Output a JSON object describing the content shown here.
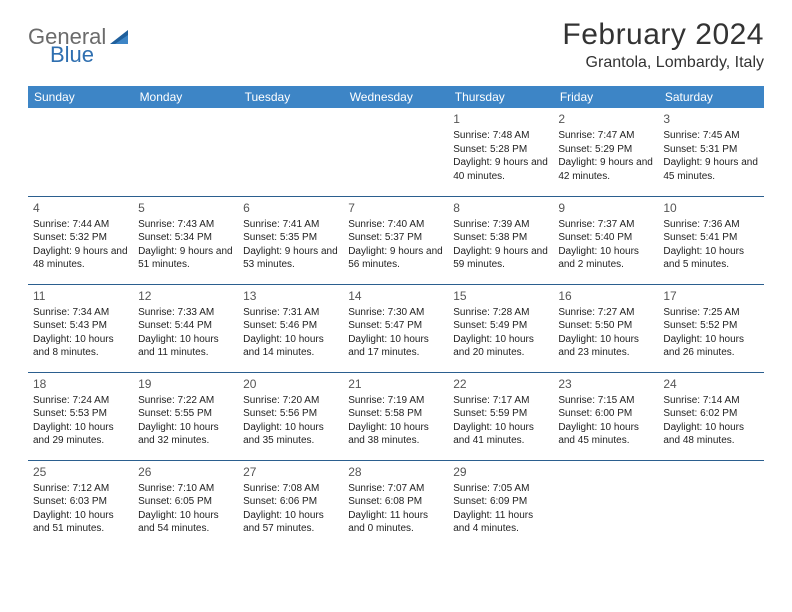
{
  "logo": {
    "part1": "General",
    "part2": "Blue"
  },
  "title": {
    "month": "February 2024",
    "location": "Grantola, Lombardy, Italy"
  },
  "colors": {
    "header_bg": "#3d85c6",
    "header_text": "#ffffff",
    "rule": "#2b5f8f",
    "text": "#222222",
    "logo_gray": "#6b6b6b",
    "logo_blue": "#2f6fb0"
  },
  "weekdays": [
    "Sunday",
    "Monday",
    "Tuesday",
    "Wednesday",
    "Thursday",
    "Friday",
    "Saturday"
  ],
  "first_weekday_index": 4,
  "days": [
    {
      "n": 1,
      "sunrise": "7:48 AM",
      "sunset": "5:28 PM",
      "daylight": "9 hours and 40 minutes."
    },
    {
      "n": 2,
      "sunrise": "7:47 AM",
      "sunset": "5:29 PM",
      "daylight": "9 hours and 42 minutes."
    },
    {
      "n": 3,
      "sunrise": "7:45 AM",
      "sunset": "5:31 PM",
      "daylight": "9 hours and 45 minutes."
    },
    {
      "n": 4,
      "sunrise": "7:44 AM",
      "sunset": "5:32 PM",
      "daylight": "9 hours and 48 minutes."
    },
    {
      "n": 5,
      "sunrise": "7:43 AM",
      "sunset": "5:34 PM",
      "daylight": "9 hours and 51 minutes."
    },
    {
      "n": 6,
      "sunrise": "7:41 AM",
      "sunset": "5:35 PM",
      "daylight": "9 hours and 53 minutes."
    },
    {
      "n": 7,
      "sunrise": "7:40 AM",
      "sunset": "5:37 PM",
      "daylight": "9 hours and 56 minutes."
    },
    {
      "n": 8,
      "sunrise": "7:39 AM",
      "sunset": "5:38 PM",
      "daylight": "9 hours and 59 minutes."
    },
    {
      "n": 9,
      "sunrise": "7:37 AM",
      "sunset": "5:40 PM",
      "daylight": "10 hours and 2 minutes."
    },
    {
      "n": 10,
      "sunrise": "7:36 AM",
      "sunset": "5:41 PM",
      "daylight": "10 hours and 5 minutes."
    },
    {
      "n": 11,
      "sunrise": "7:34 AM",
      "sunset": "5:43 PM",
      "daylight": "10 hours and 8 minutes."
    },
    {
      "n": 12,
      "sunrise": "7:33 AM",
      "sunset": "5:44 PM",
      "daylight": "10 hours and 11 minutes."
    },
    {
      "n": 13,
      "sunrise": "7:31 AM",
      "sunset": "5:46 PM",
      "daylight": "10 hours and 14 minutes."
    },
    {
      "n": 14,
      "sunrise": "7:30 AM",
      "sunset": "5:47 PM",
      "daylight": "10 hours and 17 minutes."
    },
    {
      "n": 15,
      "sunrise": "7:28 AM",
      "sunset": "5:49 PM",
      "daylight": "10 hours and 20 minutes."
    },
    {
      "n": 16,
      "sunrise": "7:27 AM",
      "sunset": "5:50 PM",
      "daylight": "10 hours and 23 minutes."
    },
    {
      "n": 17,
      "sunrise": "7:25 AM",
      "sunset": "5:52 PM",
      "daylight": "10 hours and 26 minutes."
    },
    {
      "n": 18,
      "sunrise": "7:24 AM",
      "sunset": "5:53 PM",
      "daylight": "10 hours and 29 minutes."
    },
    {
      "n": 19,
      "sunrise": "7:22 AM",
      "sunset": "5:55 PM",
      "daylight": "10 hours and 32 minutes."
    },
    {
      "n": 20,
      "sunrise": "7:20 AM",
      "sunset": "5:56 PM",
      "daylight": "10 hours and 35 minutes."
    },
    {
      "n": 21,
      "sunrise": "7:19 AM",
      "sunset": "5:58 PM",
      "daylight": "10 hours and 38 minutes."
    },
    {
      "n": 22,
      "sunrise": "7:17 AM",
      "sunset": "5:59 PM",
      "daylight": "10 hours and 41 minutes."
    },
    {
      "n": 23,
      "sunrise": "7:15 AM",
      "sunset": "6:00 PM",
      "daylight": "10 hours and 45 minutes."
    },
    {
      "n": 24,
      "sunrise": "7:14 AM",
      "sunset": "6:02 PM",
      "daylight": "10 hours and 48 minutes."
    },
    {
      "n": 25,
      "sunrise": "7:12 AM",
      "sunset": "6:03 PM",
      "daylight": "10 hours and 51 minutes."
    },
    {
      "n": 26,
      "sunrise": "7:10 AM",
      "sunset": "6:05 PM",
      "daylight": "10 hours and 54 minutes."
    },
    {
      "n": 27,
      "sunrise": "7:08 AM",
      "sunset": "6:06 PM",
      "daylight": "10 hours and 57 minutes."
    },
    {
      "n": 28,
      "sunrise": "7:07 AM",
      "sunset": "6:08 PM",
      "daylight": "11 hours and 0 minutes."
    },
    {
      "n": 29,
      "sunrise": "7:05 AM",
      "sunset": "6:09 PM",
      "daylight": "11 hours and 4 minutes."
    }
  ]
}
